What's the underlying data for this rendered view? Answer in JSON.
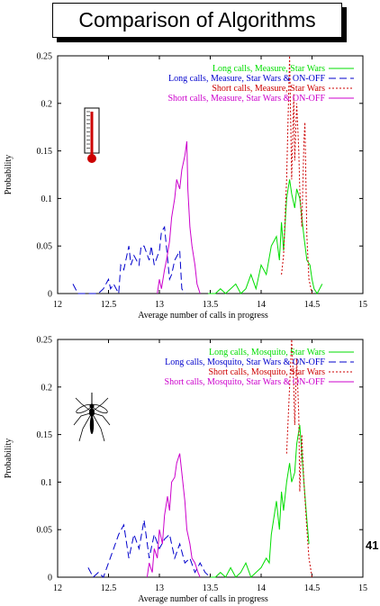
{
  "title": "Comparison of Algorithms",
  "page_number": "41",
  "chart_data": [
    {
      "type": "line",
      "icon": "thermometer-icon",
      "xlabel": "Average number of calls in progress",
      "ylabel": "Probability",
      "xlim": [
        12,
        15
      ],
      "ylim": [
        0,
        0.25
      ],
      "xticks": [
        "12",
        "12.5",
        "13",
        "13.5",
        "14",
        "14.5",
        "15"
      ],
      "yticks": [
        "0",
        "0.05",
        "0.1",
        "0.15",
        "0.2",
        "0.25"
      ],
      "grid": false,
      "legend_position": "top-right",
      "series": [
        {
          "name": "Long calls, Measure, Star Wars",
          "color": "#00dd00",
          "dash": "solid",
          "x": [
            13.48,
            13.55,
            13.6,
            13.65,
            13.7,
            13.75,
            13.8,
            13.85,
            13.9,
            13.95,
            14.0,
            14.05,
            14.1,
            14.15,
            14.18,
            14.2,
            14.22,
            14.25,
            14.28,
            14.3,
            14.33,
            14.35,
            14.38,
            14.4,
            14.42,
            14.45,
            14.48,
            14.5,
            14.52,
            14.55,
            14.6
          ],
          "y": [
            0.0,
            0.0,
            0.005,
            0.0,
            0.005,
            0.01,
            0.0,
            0.005,
            0.02,
            0.005,
            0.03,
            0.02,
            0.05,
            0.06,
            0.035,
            0.075,
            0.045,
            0.1,
            0.12,
            0.105,
            0.09,
            0.11,
            0.1,
            0.08,
            0.06,
            0.035,
            0.03,
            0.015,
            0.005,
            0.0,
            0.01
          ]
        },
        {
          "name": "Long calls, Measure, Star Wars & ON-OFF",
          "color": "#0000cc",
          "dash": "8,4",
          "x": [
            12.15,
            12.2,
            12.25,
            12.3,
            12.35,
            12.4,
            12.45,
            12.5,
            12.52,
            12.55,
            12.6,
            12.62,
            12.65,
            12.7,
            12.72,
            12.75,
            12.8,
            12.82,
            12.85,
            12.9,
            12.92,
            12.95,
            13.0,
            13.02,
            13.05,
            13.1,
            13.12,
            13.15,
            13.2,
            13.22,
            13.25
          ],
          "y": [
            0.01,
            0.0,
            0.0,
            0.0,
            0.0,
            0.0,
            0.005,
            0.015,
            0.005,
            0.01,
            0.0,
            0.03,
            0.025,
            0.05,
            0.03,
            0.04,
            0.03,
            0.05,
            0.05,
            0.035,
            0.05,
            0.03,
            0.045,
            0.065,
            0.07,
            0.015,
            0.02,
            0.035,
            0.045,
            0.005,
            0.0
          ]
        },
        {
          "name": "Short calls, Measure, Star Wars",
          "color": "#cc0000",
          "dash": "2,2",
          "x": [
            14.2,
            14.22,
            14.25,
            14.28,
            14.3,
            14.32,
            14.33,
            14.35,
            14.37,
            14.38,
            14.4,
            14.42,
            14.43,
            14.45,
            14.47,
            14.5
          ],
          "y": [
            0.02,
            0.04,
            0.12,
            0.25,
            0.12,
            0.21,
            0.14,
            0.2,
            0.15,
            0.11,
            0.07,
            0.16,
            0.18,
            0.06,
            0.015,
            0.0
          ]
        },
        {
          "name": "Short calls, Measure, Star Wars & ON-OFF",
          "color": "#cc00cc",
          "dash": "solid",
          "x": [
            12.98,
            13.0,
            13.02,
            13.05,
            13.07,
            13.1,
            13.12,
            13.15,
            13.17,
            13.2,
            13.22,
            13.25,
            13.27,
            13.28,
            13.3,
            13.32,
            13.35,
            13.37,
            13.4
          ],
          "y": [
            0.0,
            0.015,
            0.005,
            0.025,
            0.035,
            0.055,
            0.08,
            0.1,
            0.12,
            0.11,
            0.13,
            0.145,
            0.16,
            0.11,
            0.07,
            0.05,
            0.03,
            0.01,
            0.0
          ]
        }
      ]
    },
    {
      "type": "line",
      "icon": "mosquito-icon",
      "xlabel": "Average number of calls in progress",
      "ylabel": "Probability",
      "xlim": [
        12,
        15
      ],
      "ylim": [
        0,
        0.25
      ],
      "xticks": [
        "12",
        "12.5",
        "13",
        "13.5",
        "14",
        "14.5",
        "15"
      ],
      "yticks": [
        "0",
        "0.05",
        "0.1",
        "0.15",
        "0.2",
        "0.25"
      ],
      "grid": false,
      "legend_position": "top-right",
      "series": [
        {
          "name": "Long calls, Mosquito, Star Wars",
          "color": "#00dd00",
          "dash": "solid",
          "x": [
            13.5,
            13.55,
            13.6,
            13.65,
            13.7,
            13.75,
            13.8,
            13.85,
            13.9,
            13.95,
            14.0,
            14.05,
            14.08,
            14.1,
            14.15,
            14.18,
            14.2,
            14.22,
            14.25,
            14.28,
            14.3,
            14.33,
            14.35,
            14.38,
            14.4,
            14.42,
            14.45,
            14.47
          ],
          "y": [
            0.0,
            0.0,
            0.005,
            0.0,
            0.01,
            0.0,
            0.005,
            0.015,
            0.0,
            0.005,
            0.01,
            0.02,
            0.015,
            0.045,
            0.08,
            0.05,
            0.09,
            0.07,
            0.1,
            0.12,
            0.1,
            0.11,
            0.14,
            0.16,
            0.13,
            0.1,
            0.06,
            0.035
          ]
        },
        {
          "name": "Long calls, Mosquito, Star Wars & ON-OFF",
          "color": "#0000cc",
          "dash": "8,4",
          "x": [
            12.3,
            12.35,
            12.4,
            12.45,
            12.5,
            12.55,
            12.6,
            12.65,
            12.7,
            12.75,
            12.8,
            12.85,
            12.9,
            12.95,
            13.0,
            13.05,
            13.1,
            13.15,
            13.2,
            13.25,
            13.3,
            13.35,
            13.4,
            13.45,
            13.5
          ],
          "y": [
            0.01,
            0.0,
            0.005,
            0.0,
            0.015,
            0.03,
            0.045,
            0.055,
            0.02,
            0.045,
            0.03,
            0.06,
            0.02,
            0.045,
            0.03,
            0.04,
            0.045,
            0.02,
            0.035,
            0.015,
            0.02,
            0.005,
            0.015,
            0.005,
            0.0
          ]
        },
        {
          "name": "Short calls, Mosquito, Star Wars",
          "color": "#cc0000",
          "dash": "2,2",
          "x": [
            14.25,
            14.28,
            14.3,
            14.32,
            14.33,
            14.35,
            14.37,
            14.38,
            14.4,
            14.42,
            14.45,
            14.47,
            14.5
          ],
          "y": [
            0.13,
            0.2,
            0.25,
            0.2,
            0.16,
            0.23,
            0.17,
            0.09,
            0.15,
            0.1,
            0.05,
            0.02,
            0.0
          ]
        },
        {
          "name": "Short calls, Mosquito, Star Wars & ON-OFF",
          "color": "#cc00cc",
          "dash": "solid",
          "x": [
            12.88,
            12.9,
            12.93,
            12.95,
            12.98,
            13.0,
            13.03,
            13.05,
            13.08,
            13.1,
            13.12,
            13.15,
            13.17,
            13.2,
            13.22,
            13.25,
            13.27,
            13.3,
            13.32,
            13.35,
            13.38,
            13.4
          ],
          "y": [
            0.0,
            0.015,
            0.005,
            0.03,
            0.02,
            0.05,
            0.035,
            0.065,
            0.085,
            0.07,
            0.1,
            0.105,
            0.12,
            0.13,
            0.11,
            0.08,
            0.05,
            0.035,
            0.02,
            0.015,
            0.005,
            0.0
          ]
        }
      ]
    }
  ]
}
